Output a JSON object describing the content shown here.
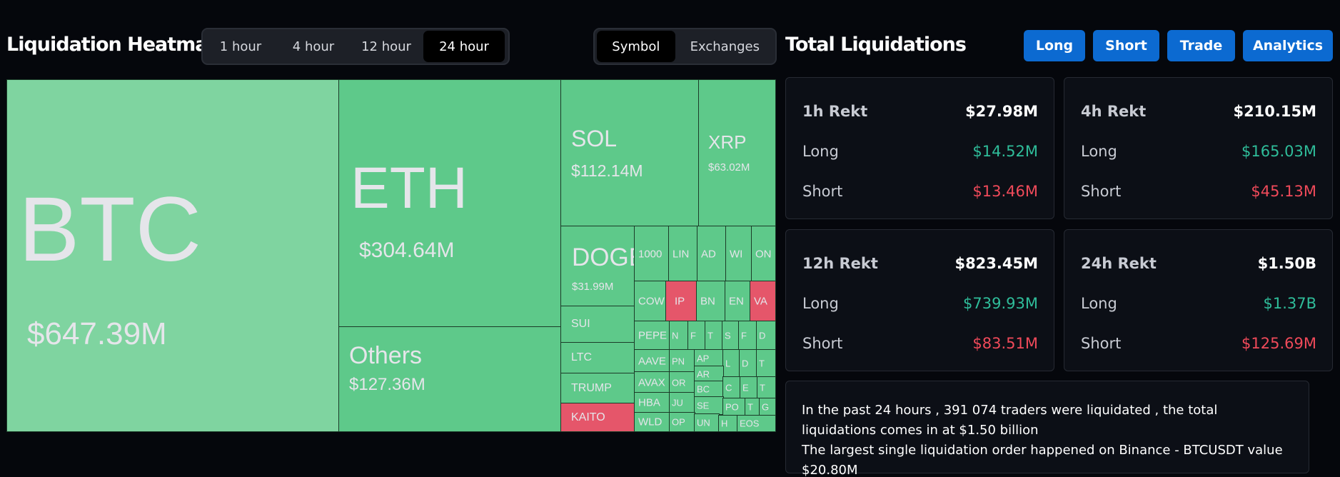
{
  "heatmap": {
    "title": "Liquidation Heatmap",
    "time_tabs": [
      "1 hour",
      "4 hour",
      "12 hour",
      "24 hour"
    ],
    "active_time_tab": "24 hour",
    "view_tabs": [
      "Symbol",
      "Exchanges"
    ],
    "active_view_tab": "Symbol",
    "tiles": {
      "btc": {
        "symbol": "BTC",
        "value": "$647.39M"
      },
      "eth": {
        "symbol": "ETH",
        "value": "$304.64M"
      },
      "others": {
        "symbol": "Others",
        "value": "$127.36M"
      },
      "sol": {
        "symbol": "SOL",
        "value": "$112.14M"
      },
      "xrp": {
        "symbol": "XRP",
        "value": "$63.02M"
      },
      "doge": {
        "symbol": "DOGE",
        "value": "$31.99M"
      },
      "sui": {
        "symbol": "SUI"
      },
      "ltc": {
        "symbol": "LTC"
      },
      "trump": {
        "symbol": "TRUMP"
      },
      "kaito": {
        "symbol": "KAITO"
      },
      "small": [
        "1000",
        "LIN",
        "AD",
        "WI",
        "ON",
        "COW",
        "IP",
        "BN",
        "EN",
        "VA",
        "PEPE",
        "N",
        "F",
        "T",
        "S",
        "F",
        "D",
        "AAVE",
        "PN",
        "AP",
        "L",
        "D",
        "T",
        "AVAX",
        "OR",
        "AR",
        "HBA",
        "JU",
        "BC",
        "C",
        "E",
        "T",
        "SE",
        "PO",
        "T",
        "G",
        "WLD",
        "OP",
        "UN",
        "H",
        "EOS"
      ]
    }
  },
  "total": {
    "title": "Total Liquidations",
    "buttons": [
      "Long",
      "Short",
      "Trade",
      "Analytics"
    ],
    "cards": [
      {
        "title": "1h Rekt",
        "total": "$27.98M",
        "long_label": "Long",
        "long": "$14.52M",
        "short_label": "Short",
        "short": "$13.46M"
      },
      {
        "title": "4h Rekt",
        "total": "$210.15M",
        "long_label": "Long",
        "long": "$165.03M",
        "short_label": "Short",
        "short": "$45.13M"
      },
      {
        "title": "12h Rekt",
        "total": "$823.45M",
        "long_label": "Long",
        "long": "$739.93M",
        "short_label": "Short",
        "short": "$83.51M"
      },
      {
        "title": "24h Rekt",
        "total": "$1.50B",
        "long_label": "Long",
        "long": "$1.37B",
        "short_label": "Short",
        "short": "$125.69M"
      }
    ],
    "summary_line1": "In the past 24 hours , 391 074 traders were liquidated , the total liquidations comes in at $1.50 billion",
    "summary_line2": "The largest single liquidation order happened on Binance - BTCUSDT value $20.80M"
  },
  "colors": {
    "tile_green": "#5ec98a",
    "tile_red": "#e5566a",
    "button_blue": "#0c6ad1",
    "long_green": "#2fbd9a",
    "short_red": "#f04a5a"
  }
}
